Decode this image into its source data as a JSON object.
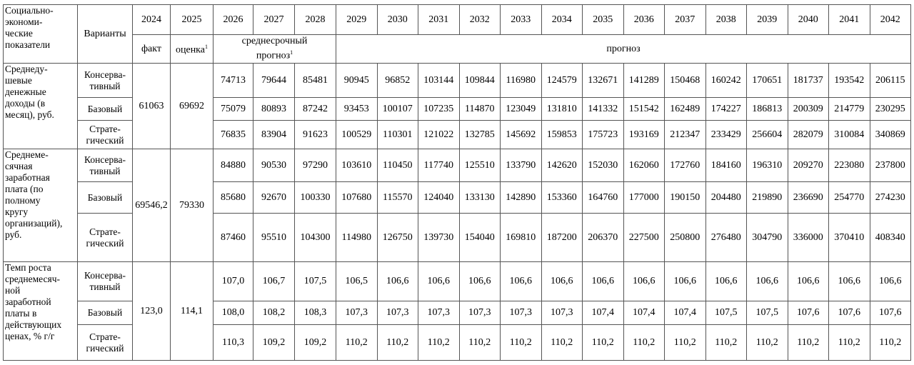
{
  "header": {
    "indicator": "Социально-\nэкономи-\nческие\nпоказатели",
    "variants": "Варианты",
    "years": [
      2024,
      2025,
      2026,
      2027,
      2028,
      2029,
      2030,
      2031,
      2032,
      2033,
      2034,
      2035,
      2036,
      2037,
      2038,
      2039,
      2040,
      2041,
      2042
    ],
    "fact": "факт",
    "estimate": {
      "text": "оценка",
      "note": "1"
    },
    "medium": {
      "text": "среднесрочный\nпрогноз",
      "note": "1"
    },
    "forecast": "прогноз"
  },
  "rows": [
    {
      "indicator": "Среднеду-\nшевые\nденежные\nдоходы (в\nмесяц), руб.",
      "fact": "61063",
      "estimate": "69692",
      "variants": [
        {
          "name": "Консерва-\nтивный",
          "values": [
            "74713",
            "79644",
            "85481",
            "90945",
            "96852",
            "103144",
            "109844",
            "116980",
            "124579",
            "132671",
            "141289",
            "150468",
            "160242",
            "170651",
            "181737",
            "193542",
            "206115"
          ]
        },
        {
          "name": "Базовый",
          "values": [
            "75079",
            "80893",
            "87242",
            "93453",
            "100107",
            "107235",
            "114870",
            "123049",
            "131810",
            "141332",
            "151542",
            "162489",
            "174227",
            "186813",
            "200309",
            "214779",
            "230295"
          ]
        },
        {
          "name": "Страте-\nгический",
          "values": [
            "76835",
            "83904",
            "91623",
            "100529",
            "110301",
            "121022",
            "132785",
            "145692",
            "159853",
            "175723",
            "193169",
            "212347",
            "233429",
            "256604",
            "282079",
            "310084",
            "340869"
          ]
        }
      ]
    },
    {
      "indicator": "Среднеме-\nсячная\nзаработная\nплата (по\nполному\nкругу\nорганизаций),\nруб.",
      "fact": "69546,2",
      "estimate": "79330",
      "variants": [
        {
          "name": "Консерва-\nтивный",
          "values": [
            "84880",
            "90530",
            "97290",
            "103610",
            "110450",
            "117740",
            "125510",
            "133790",
            "142620",
            "152030",
            "162060",
            "172760",
            "184160",
            "196310",
            "209270",
            "223080",
            "237800"
          ]
        },
        {
          "name": "Базовый",
          "values": [
            "85680",
            "92670",
            "100330",
            "107680",
            "115570",
            "124040",
            "133130",
            "142890",
            "153360",
            "164760",
            "177000",
            "190150",
            "204480",
            "219890",
            "236690",
            "254770",
            "274230"
          ]
        },
        {
          "name": "Страте-\nгический",
          "values": [
            "87460",
            "95510",
            "104300",
            "114980",
            "126750",
            "139730",
            "154040",
            "169810",
            "187200",
            "206370",
            "227500",
            "250800",
            "276480",
            "304790",
            "336000",
            "370410",
            "408340"
          ]
        }
      ]
    },
    {
      "indicator": "Темп роста\nсреднемесяч-\nной\nзаработной\nплаты в\nдействующих\nценах, % г/г",
      "fact": "123,0",
      "estimate": "114,1",
      "variants": [
        {
          "name": "Консерва-\nтивный",
          "values": [
            "107,0",
            "106,7",
            "107,5",
            "106,5",
            "106,6",
            "106,6",
            "106,6",
            "106,6",
            "106,6",
            "106,6",
            "106,6",
            "106,6",
            "106,6",
            "106,6",
            "106,6",
            "106,6",
            "106,6"
          ]
        },
        {
          "name": "Базовый",
          "values": [
            "108,0",
            "108,2",
            "108,3",
            "107,3",
            "107,3",
            "107,3",
            "107,3",
            "107,3",
            "107,3",
            "107,4",
            "107,4",
            "107,4",
            "107,5",
            "107,5",
            "107,6",
            "107,6",
            "107,6"
          ]
        },
        {
          "name": "Страте-\nгический",
          "values": [
            "110,3",
            "109,2",
            "109,2",
            "110,2",
            "110,2",
            "110,2",
            "110,2",
            "110,2",
            "110,2",
            "110,2",
            "110,2",
            "110,2",
            "110,2",
            "110,2",
            "110,2",
            "110,2",
            "110,2"
          ]
        }
      ]
    }
  ]
}
